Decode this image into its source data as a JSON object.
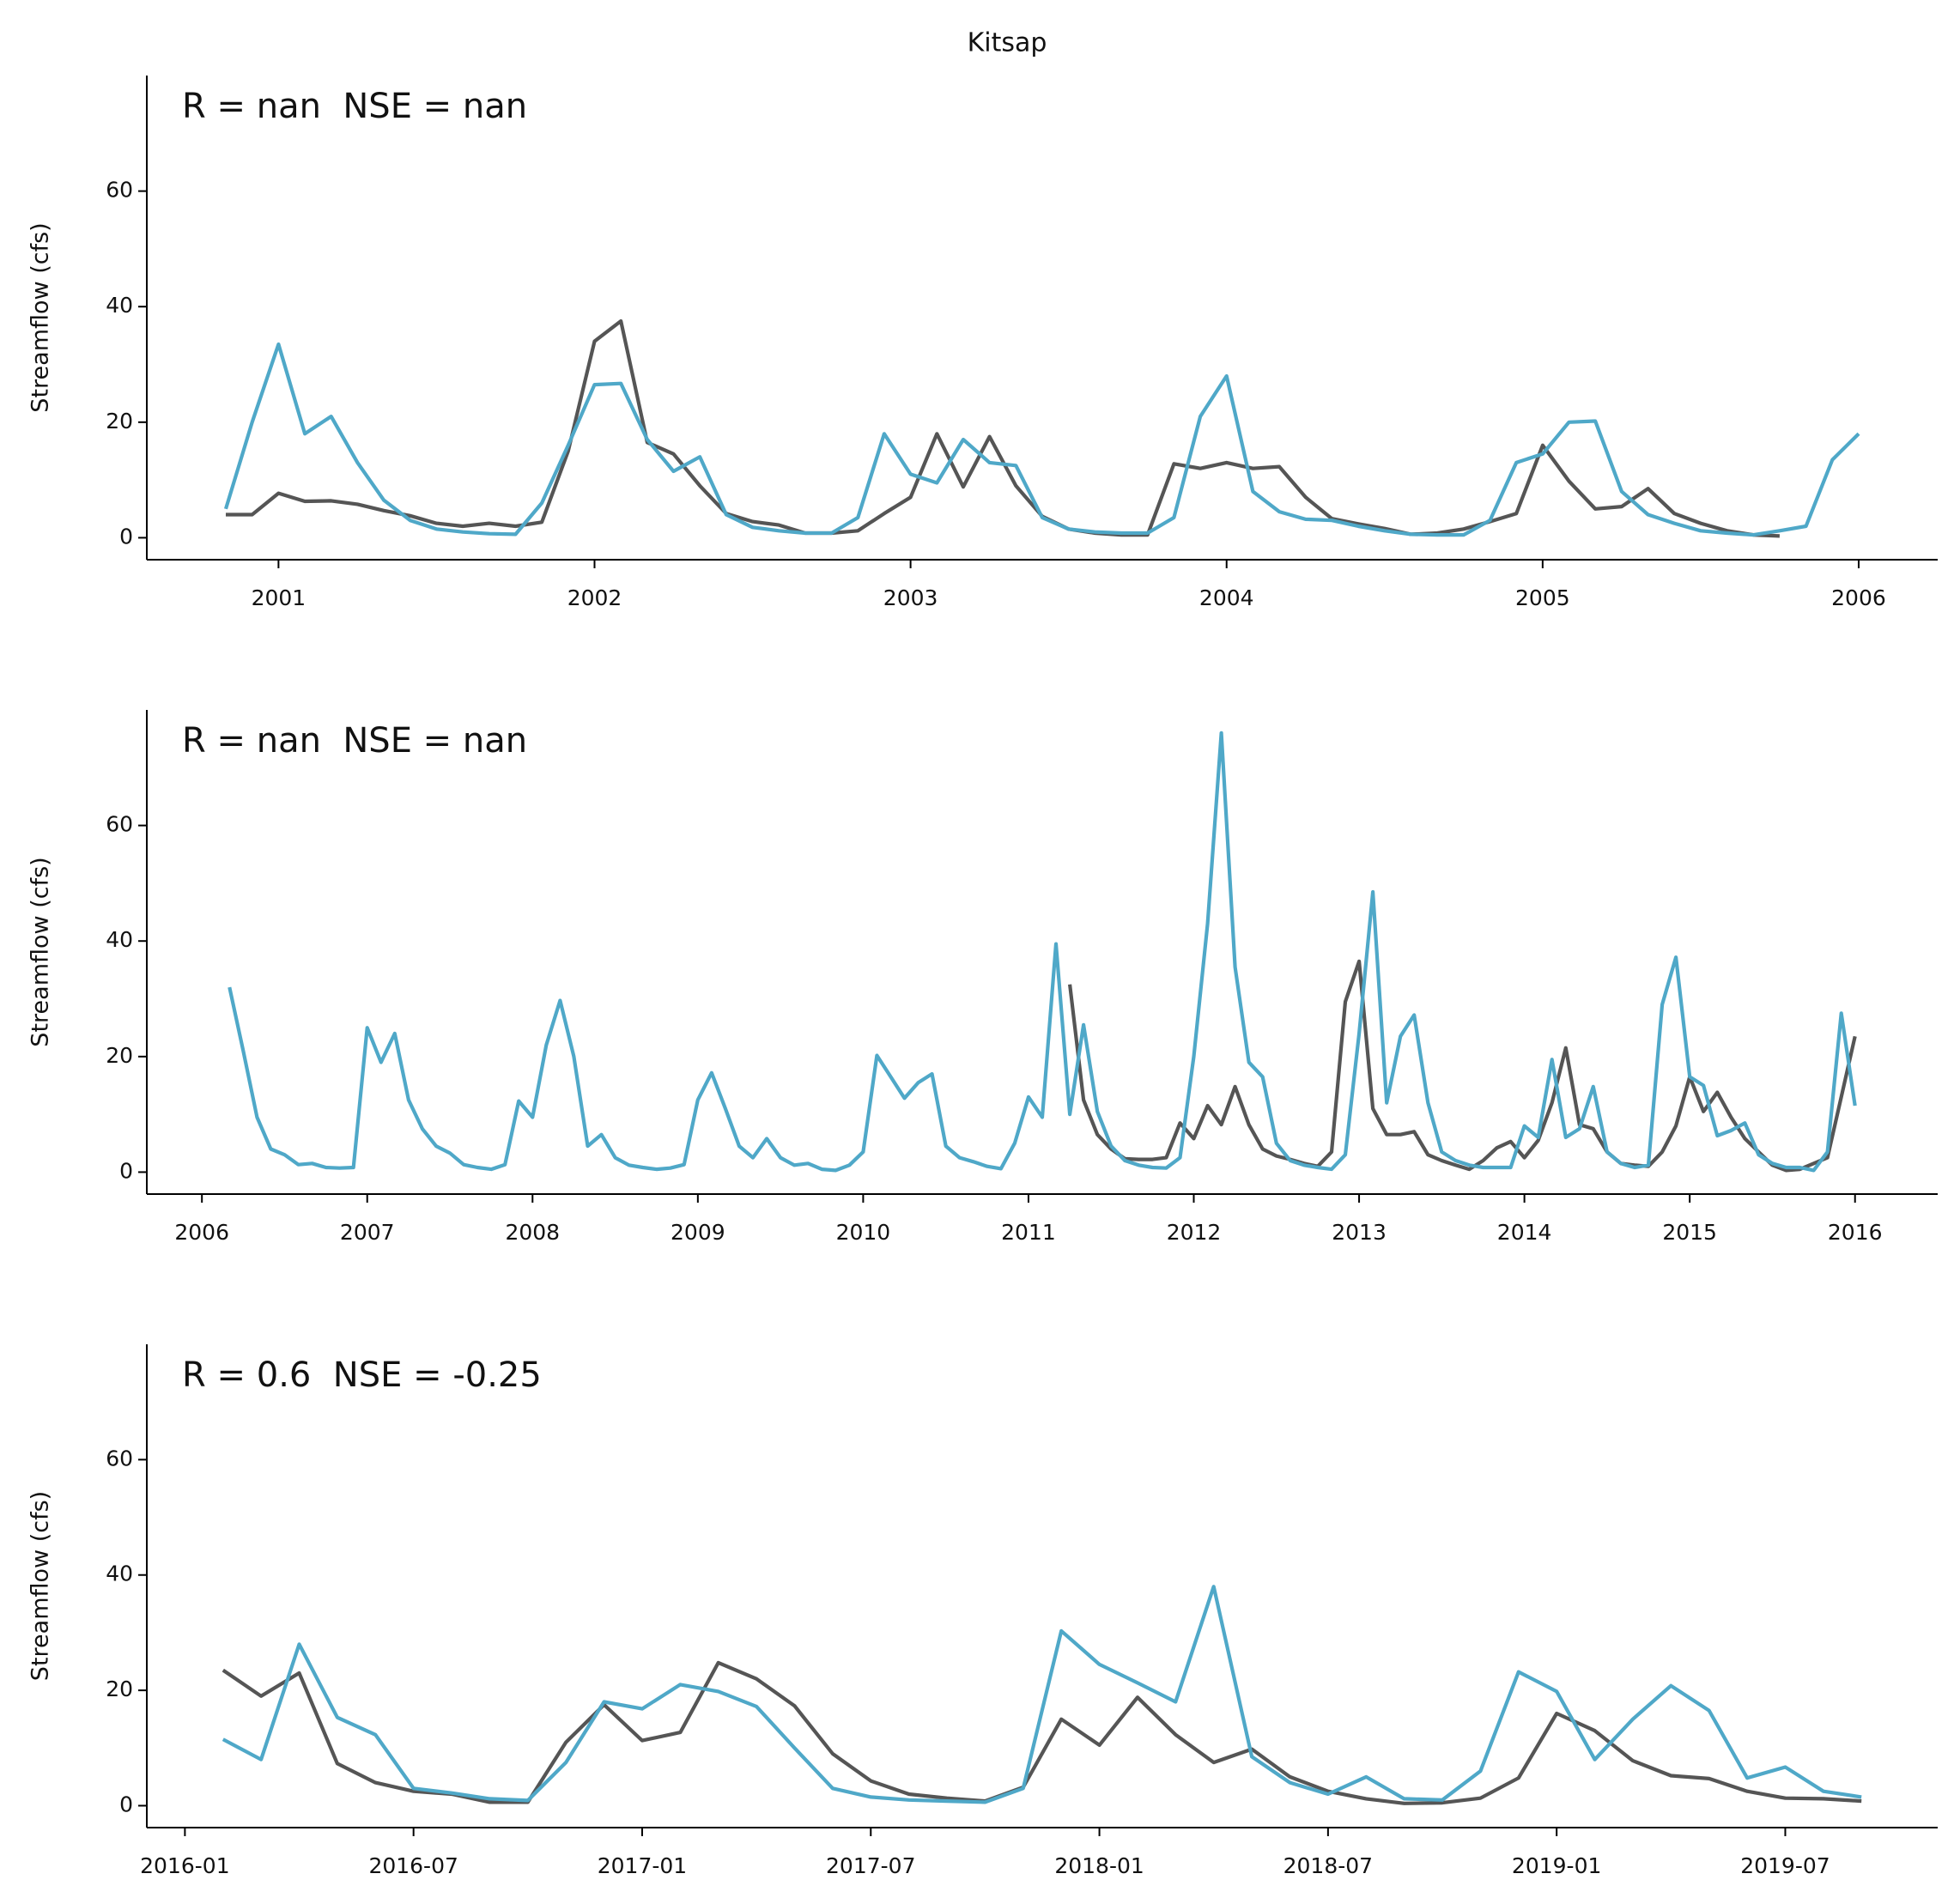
{
  "chart_data": [
    {
      "type": "line",
      "title": "Kitsap",
      "annotation": "R = nan  NSE = nan",
      "ylabel": "Streamflow (cfs)",
      "grid": false,
      "x": [
        "2000-11",
        "2000-12",
        "2001-01",
        "2001-02",
        "2001-03",
        "2001-04",
        "2001-05",
        "2001-06",
        "2001-07",
        "2001-08",
        "2001-09",
        "2001-10",
        "2001-11",
        "2001-12",
        "2002-01",
        "2002-02",
        "2002-03",
        "2002-04",
        "2002-05",
        "2002-06",
        "2002-07",
        "2002-08",
        "2002-09",
        "2002-10",
        "2002-11",
        "2002-12",
        "2003-01",
        "2003-02",
        "2003-03",
        "2003-04",
        "2003-05",
        "2003-06",
        "2003-07",
        "2003-08",
        "2003-09",
        "2003-10",
        "2003-11",
        "2003-12",
        "2004-01",
        "2004-02",
        "2004-03",
        "2004-04",
        "2004-05",
        "2004-06",
        "2004-07",
        "2004-08",
        "2004-09",
        "2004-10",
        "2004-11",
        "2004-12",
        "2005-01",
        "2005-02",
        "2005-03",
        "2005-04",
        "2005-05",
        "2005-06",
        "2005-07",
        "2005-08",
        "2005-09",
        "2005-10",
        "2005-11",
        "2005-12",
        "2006-01"
      ],
      "xlim": [
        "2000-08",
        "2006-04"
      ],
      "xticks": [
        {
          "value": "2001-01",
          "label": "2001"
        },
        {
          "value": "2002-01",
          "label": "2002"
        },
        {
          "value": "2003-01",
          "label": "2003"
        },
        {
          "value": "2004-01",
          "label": "2004"
        },
        {
          "value": "2005-01",
          "label": "2005"
        },
        {
          "value": "2006-01",
          "label": "2006"
        }
      ],
      "ylim": [
        -3.8,
        80
      ],
      "yticks": [
        0,
        20,
        40,
        60
      ],
      "series": [
        {
          "color": "#555555",
          "values": [
            4,
            4,
            7.7,
            6.3,
            6.4,
            5.8,
            4.7,
            3.8,
            2.5,
            2,
            2.5,
            2,
            2.7,
            15,
            34,
            37.5,
            16.5,
            14.5,
            9,
            4.2,
            2.8,
            2.2,
            0.8,
            0.8,
            1.2,
            4.2,
            7,
            18,
            8.8,
            17.5,
            9,
            3.7,
            1.5,
            0.8,
            0.5,
            0.5,
            12.8,
            12,
            13,
            12,
            12.3,
            7,
            3.3,
            2.4,
            1.6,
            0.6,
            0.8,
            1.5,
            2.8,
            4.2,
            16,
            9.8,
            5,
            5.4,
            8.5,
            4.2,
            2.5,
            1.2,
            0.5,
            0.3,
            null,
            null,
            null
          ]
        },
        {
          "color": "#4fa8c8",
          "values": [
            5,
            20,
            33.5,
            18,
            21,
            13,
            6.5,
            3,
            1.5,
            1,
            0.7,
            0.6,
            6,
            16,
            26.5,
            26.7,
            17,
            11.5,
            14,
            4,
            1.8,
            1.2,
            0.8,
            0.8,
            3.5,
            18,
            11,
            9.5,
            17,
            13,
            12.5,
            3.5,
            1.5,
            1,
            0.8,
            0.8,
            3.5,
            21,
            28,
            8,
            4.5,
            3.2,
            3,
            2,
            1.2,
            0.6,
            0.5,
            0.5,
            3,
            13,
            14.5,
            20,
            20.2,
            8,
            4,
            2.5,
            1.2,
            0.8,
            0.5,
            1.2,
            2,
            13.5,
            18
          ]
        }
      ]
    },
    {
      "type": "line",
      "annotation": "R = nan  NSE = nan",
      "ylabel": "Streamflow (cfs)",
      "grid": false,
      "x": [
        "2006-03",
        "2006-04",
        "2006-05",
        "2006-06",
        "2006-07",
        "2006-08",
        "2006-09",
        "2006-10",
        "2006-11",
        "2006-12",
        "2007-01",
        "2007-02",
        "2007-03",
        "2007-04",
        "2007-05",
        "2007-06",
        "2007-07",
        "2007-08",
        "2007-09",
        "2007-10",
        "2007-11",
        "2007-12",
        "2008-01",
        "2008-02",
        "2008-03",
        "2008-04",
        "2008-05",
        "2008-06",
        "2008-07",
        "2008-08",
        "2008-09",
        "2008-10",
        "2008-11",
        "2008-12",
        "2009-01",
        "2009-02",
        "2009-03",
        "2009-04",
        "2009-05",
        "2009-06",
        "2009-07",
        "2009-08",
        "2009-09",
        "2009-10",
        "2009-11",
        "2009-12",
        "2010-01",
        "2010-02",
        "2010-03",
        "2010-04",
        "2010-05",
        "2010-06",
        "2010-07",
        "2010-08",
        "2010-09",
        "2010-10",
        "2010-11",
        "2010-12",
        "2011-01",
        "2011-02",
        "2011-03",
        "2011-04",
        "2011-05",
        "2011-06",
        "2011-07",
        "2011-08",
        "2011-09",
        "2011-10",
        "2011-11",
        "2011-12",
        "2012-01",
        "2012-02",
        "2012-03",
        "2012-04",
        "2012-05",
        "2012-06",
        "2012-07",
        "2012-08",
        "2012-09",
        "2012-10",
        "2012-11",
        "2012-12",
        "2013-01",
        "2013-02",
        "2013-03",
        "2013-04",
        "2013-05",
        "2013-06",
        "2013-07",
        "2013-08",
        "2013-09",
        "2013-10",
        "2013-11",
        "2013-12",
        "2014-01",
        "2014-02",
        "2014-03",
        "2014-04",
        "2014-05",
        "2014-06",
        "2014-07",
        "2014-08",
        "2014-09",
        "2014-10",
        "2014-11",
        "2014-12",
        "2015-01",
        "2015-02",
        "2015-03",
        "2015-04",
        "2015-05",
        "2015-06",
        "2015-07",
        "2015-08",
        "2015-09",
        "2015-10",
        "2015-11",
        "2015-12",
        "2016-01"
      ],
      "xlim": [
        "2005-09",
        "2016-07"
      ],
      "xticks": [
        {
          "value": "2006-01",
          "label": "2006"
        },
        {
          "value": "2007-01",
          "label": "2007"
        },
        {
          "value": "2008-01",
          "label": "2008"
        },
        {
          "value": "2009-01",
          "label": "2009"
        },
        {
          "value": "2010-01",
          "label": "2010"
        },
        {
          "value": "2011-01",
          "label": "2011"
        },
        {
          "value": "2012-01",
          "label": "2012"
        },
        {
          "value": "2013-01",
          "label": "2013"
        },
        {
          "value": "2014-01",
          "label": "2014"
        },
        {
          "value": "2015-01",
          "label": "2015"
        },
        {
          "value": "2016-01",
          "label": "2016"
        }
      ],
      "ylim": [
        -3.8,
        80
      ],
      "yticks": [
        0,
        20,
        40,
        60
      ],
      "series": [
        {
          "color": "#555555",
          "values": [
            null,
            null,
            null,
            null,
            null,
            null,
            null,
            null,
            null,
            null,
            null,
            null,
            null,
            null,
            null,
            null,
            null,
            null,
            null,
            null,
            null,
            null,
            null,
            null,
            null,
            null,
            null,
            null,
            null,
            null,
            null,
            null,
            null,
            null,
            null,
            null,
            null,
            null,
            null,
            null,
            null,
            null,
            null,
            null,
            null,
            null,
            null,
            null,
            null,
            null,
            null,
            null,
            null,
            null,
            null,
            null,
            null,
            null,
            null,
            null,
            null,
            32.5,
            12.5,
            6.5,
            4,
            2.3,
            2.2,
            2.2,
            2.5,
            8.5,
            5.8,
            11.5,
            8.2,
            14.8,
            8.2,
            4,
            2.8,
            2.2,
            1.5,
            1,
            3.5,
            29.5,
            36.5,
            11,
            6.5,
            6.5,
            7,
            3,
            2,
            1.2,
            0.5,
            2,
            4.2,
            5.3,
            2.5,
            5.5,
            12,
            21.5,
            8.2,
            7.5,
            3.5,
            1.5,
            1.2,
            1,
            3.5,
            8,
            16.5,
            10.5,
            13.8,
            9.5,
            5.8,
            3.5,
            1.2,
            0.3,
            0.5,
            1.5,
            2.5,
            13,
            23.5
          ]
        },
        {
          "color": "#4fa8c8",
          "values": [
            32,
            21,
            9.5,
            4,
            3,
            1.3,
            1.5,
            0.8,
            0.7,
            0.8,
            25,
            19,
            24,
            12.5,
            7.5,
            4.5,
            3.3,
            1.3,
            0.8,
            0.5,
            1.3,
            12.3,
            9.5,
            22,
            29.7,
            20,
            4.5,
            6.5,
            2.5,
            1.2,
            0.8,
            0.5,
            0.7,
            1.3,
            12.5,
            17.2,
            11,
            4.5,
            2.5,
            5.8,
            2.5,
            1.2,
            1.5,
            0.5,
            0.3,
            1.2,
            3.5,
            20.2,
            16.5,
            12.8,
            15.5,
            17,
            4.5,
            2.5,
            1.8,
            1,
            0.6,
            5,
            13,
            9.5,
            39.5,
            10,
            25.5,
            10.5,
            4.5,
            2,
            1.2,
            0.8,
            0.7,
            2.5,
            20,
            43,
            76,
            35.5,
            19,
            16.5,
            5,
            2,
            1.2,
            0.8,
            0.5,
            3,
            24,
            48.5,
            12,
            23.5,
            27.2,
            12,
            3.5,
            2,
            1.2,
            0.8,
            0.8,
            0.8,
            8,
            6,
            19.5,
            6,
            7.5,
            14.8,
            3.5,
            1.5,
            0.8,
            1.2,
            29,
            37.2,
            16.5,
            15,
            6.3,
            7.2,
            8.5,
            3,
            1.5,
            0.8,
            0.8,
            0.3,
            3.5,
            27.5,
            11.5
          ]
        }
      ]
    },
    {
      "type": "line",
      "annotation": "R = 0.6  NSE = -0.25",
      "ylabel": "Streamflow (cfs)",
      "grid": false,
      "x": [
        "2016-02",
        "2016-03",
        "2016-04",
        "2016-05",
        "2016-06",
        "2016-07",
        "2016-08",
        "2016-09",
        "2016-10",
        "2016-11",
        "2016-12",
        "2017-01",
        "2017-02",
        "2017-03",
        "2017-04",
        "2017-05",
        "2017-06",
        "2017-07",
        "2017-08",
        "2017-09",
        "2017-10",
        "2017-11",
        "2017-12",
        "2018-01",
        "2018-02",
        "2018-03",
        "2018-04",
        "2018-05",
        "2018-06",
        "2018-07",
        "2018-08",
        "2018-09",
        "2018-10",
        "2018-11",
        "2018-12",
        "2019-01",
        "2019-02",
        "2019-03",
        "2019-04",
        "2019-05",
        "2019-06",
        "2019-07",
        "2019-08",
        "2019-09"
      ],
      "xlim": [
        "2015-12",
        "2019-11"
      ],
      "xticks": [
        "2016-01",
        "2016-07",
        "2017-01",
        "2017-07",
        "2018-01",
        "2018-07",
        "2019-01",
        "2019-07"
      ],
      "ylim": [
        -3.8,
        80
      ],
      "yticks": [
        0,
        20,
        40,
        60
      ],
      "series": [
        {
          "color": "#555555",
          "values": [
            23.5,
            19,
            23,
            7.3,
            4,
            2.5,
            2,
            0.6,
            0.6,
            11,
            17.5,
            11.3,
            12.7,
            24.8,
            22,
            17.3,
            9,
            4.3,
            2,
            1.3,
            0.8,
            3.2,
            15,
            10.5,
            18.8,
            12.3,
            7.5,
            9.8,
            5,
            2.5,
            1.2,
            0.4,
            0.5,
            1.3,
            4.8,
            16,
            13,
            7.8,
            5.2,
            4.7,
            2.5,
            1.3,
            1.2,
            0.8
          ]
        },
        {
          "color": "#4fa8c8",
          "values": [
            11.5,
            8,
            28,
            15.3,
            12.3,
            3,
            2.2,
            1.2,
            0.9,
            7.5,
            18,
            16.8,
            21,
            19.8,
            17.2,
            10,
            3,
            1.5,
            1,
            0.8,
            0.6,
            3,
            30.3,
            24.5,
            21.3,
            18,
            38,
            8.5,
            4,
            2,
            5,
            1.2,
            1,
            6,
            23.2,
            19.8,
            8,
            15,
            20.8,
            16.5,
            4.8,
            6.7,
            2.5,
            1.5
          ]
        }
      ]
    }
  ]
}
